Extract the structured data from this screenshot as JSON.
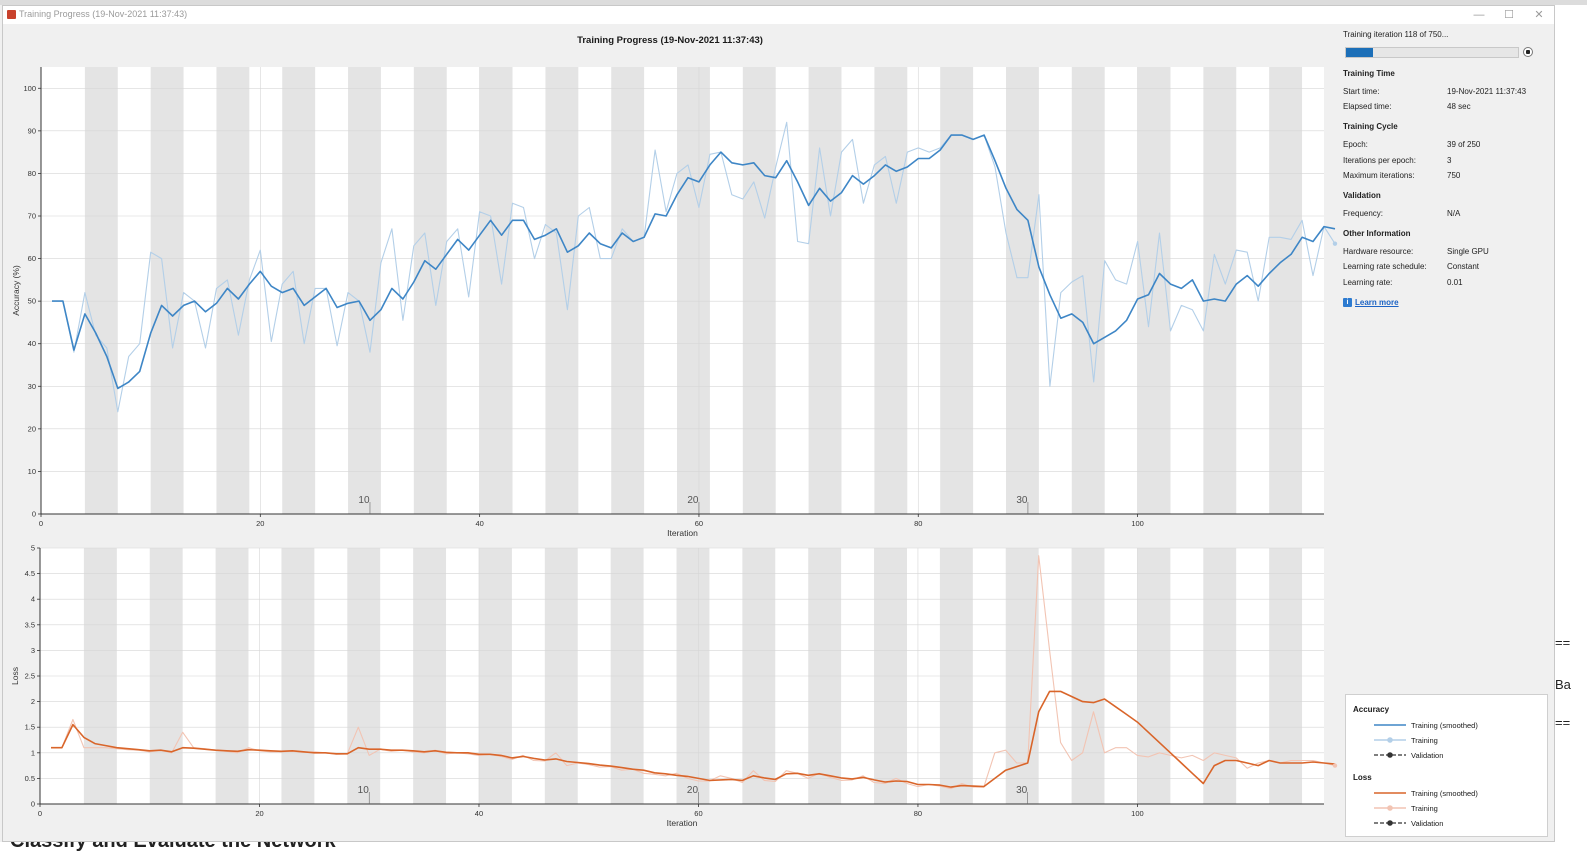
{
  "window": {
    "title": "Training Progress (19-Nov-2021 11:37:43)",
    "controls": {
      "minimize": "—",
      "maximize": "☐",
      "close": "✕"
    }
  },
  "background": {
    "heading": "Classify and Evaluate the Network",
    "right_fragments": [
      "==",
      "Ba",
      "=="
    ]
  },
  "chart_data": [
    {
      "type": "line",
      "title": "Training Progress (19-Nov-2021 11:37:43)",
      "xlabel": "Iteration",
      "ylabel": "Accuracy (%)",
      "xlim": [
        0,
        117
      ],
      "ylim": [
        0,
        105
      ],
      "x_ticks": [
        0,
        20,
        40,
        60,
        80,
        100
      ],
      "y_ticks": [
        0,
        10,
        20,
        30,
        40,
        50,
        60,
        70,
        80,
        90,
        100
      ],
      "epoch_labels": [
        10,
        20,
        30
      ],
      "iterations_per_epoch": 3,
      "grid": true,
      "series": [
        {
          "name": "Training (smoothed)",
          "color": "#3e86c6",
          "values": [
            50,
            50,
            38.5,
            47,
            42.5,
            37,
            29.5,
            31,
            33.5,
            42.5,
            49,
            46.5,
            49,
            50,
            47.5,
            49.5,
            53,
            50.5,
            54,
            57,
            53.5,
            52,
            53,
            49,
            51,
            53,
            48.5,
            49.5,
            50,
            45.5,
            48,
            53,
            50.5,
            54.5,
            59.5,
            57.5,
            61,
            64.5,
            62,
            65.5,
            69,
            65.5,
            69,
            69,
            64.5,
            65.5,
            67,
            61.5,
            63,
            66,
            63.5,
            62.5,
            66,
            64,
            65,
            70.5,
            70,
            75,
            79,
            78,
            82,
            85,
            82.5,
            82,
            82.5,
            79.5,
            79,
            83,
            78,
            72.5,
            76.5,
            73.5,
            75.5,
            79.5,
            77.5,
            79.5,
            82,
            80.5,
            81.5,
            83.5,
            83.5,
            85.5,
            89,
            89,
            88,
            89,
            83,
            76.5,
            71.5,
            69,
            58,
            51.5,
            46,
            47,
            45,
            40,
            41.5,
            43,
            45.5,
            50.5,
            51.5,
            56.5,
            54,
            53,
            55,
            50,
            50.5,
            50,
            54,
            56,
            53.5,
            56.5,
            59,
            61,
            65,
            64,
            67.5,
            67
          ]
        },
        {
          "name": "Training",
          "color": "#b3cfe8",
          "values": [
            50,
            50,
            38,
            52,
            42,
            39,
            24,
            37,
            40,
            61.5,
            60,
            39,
            52,
            50,
            39,
            53,
            55,
            42,
            55,
            62,
            40.5,
            54,
            57,
            40,
            53,
            53,
            39.5,
            52,
            50,
            38,
            59,
            67,
            45.5,
            63,
            66,
            49,
            64,
            67,
            51,
            71,
            70,
            54,
            73,
            72,
            60,
            68,
            66,
            48,
            70,
            72,
            60,
            60,
            67,
            64,
            65,
            85.5,
            71,
            80,
            82,
            72,
            84.5,
            85,
            75,
            74,
            78,
            69.5,
            81.5,
            92,
            64,
            63.5,
            86,
            70,
            85,
            88,
            73,
            82,
            84,
            73,
            85,
            86,
            85,
            86,
            89,
            89,
            88,
            89,
            81.5,
            66,
            55.5,
            55.5,
            75,
            30,
            52,
            54.5,
            56,
            31,
            59.5,
            55,
            54,
            64,
            44,
            66,
            43,
            49,
            48,
            43,
            61,
            54,
            62,
            61.5,
            50,
            65,
            65,
            64.5,
            69,
            56,
            67.5,
            63.5
          ]
        }
      ]
    },
    {
      "type": "line",
      "xlabel": "Iteration",
      "ylabel": "Loss",
      "xlim": [
        0,
        117
      ],
      "ylim": [
        0,
        5
      ],
      "x_ticks": [
        0,
        20,
        40,
        60,
        80,
        100
      ],
      "y_ticks": [
        0,
        0.5,
        1,
        1.5,
        2,
        2.5,
        3,
        3.5,
        4,
        4.5,
        5
      ],
      "epoch_labels": [
        10,
        20,
        30
      ],
      "iterations_per_epoch": 3,
      "grid": true,
      "series": [
        {
          "name": "Training (smoothed)",
          "color": "#d9652a",
          "values": [
            1.1,
            1.1,
            1.55,
            1.3,
            1.18,
            1.14,
            1.1,
            1.08,
            1.06,
            1.04,
            1.05,
            1.02,
            1.1,
            1.09,
            1.07,
            1.05,
            1.04,
            1.03,
            1.06,
            1.05,
            1.04,
            1.03,
            1.04,
            1.02,
            1,
            1,
            0.98,
            0.98,
            1.1,
            1.07,
            1.07,
            1.05,
            1.05,
            1.04,
            1.02,
            1.04,
            1.01,
            1,
            1,
            0.97,
            0.97,
            0.95,
            0.9,
            0.93,
            0.89,
            0.86,
            0.88,
            0.83,
            0.81,
            0.79,
            0.76,
            0.74,
            0.71,
            0.68,
            0.66,
            0.61,
            0.59,
            0.56,
            0.54,
            0.5,
            0.46,
            0.47,
            0.48,
            0.46,
            0.55,
            0.51,
            0.48,
            0.59,
            0.6,
            0.56,
            0.59,
            0.55,
            0.51,
            0.49,
            0.52,
            0.47,
            0.43,
            0.45,
            0.44,
            0.38,
            0.38,
            0.37,
            0.33,
            0.36,
            0.35,
            0.34,
            0.5,
            0.66,
            0.73,
            0.8,
            1.8,
            2.2,
            2.2,
            2.1,
            2,
            1.98,
            2.05,
            1.9,
            1.75,
            1.6,
            1.4,
            1.2,
            1,
            0.8,
            0.6,
            0.4,
            0.75,
            0.85,
            0.85,
            0.8,
            0.75,
            0.85,
            0.8,
            0.8,
            0.8,
            0.82,
            0.8,
            0.78
          ]
        },
        {
          "name": "Training",
          "color": "#f2c4b3",
          "values": [
            1.1,
            1.1,
            1.65,
            1.1,
            1.1,
            1.1,
            1.08,
            1.06,
            1.05,
            1.02,
            1.05,
            1,
            1.4,
            1.1,
            1.08,
            1.05,
            1.03,
            1,
            1.1,
            1.04,
            1.02,
            1.02,
            1.03,
            1.01,
            1.02,
            1,
            0.97,
            0.98,
            1.5,
            0.95,
            1.07,
            1.03,
            1.05,
            1.02,
            1,
            1.05,
            0.98,
            1,
            0.98,
            0.95,
            0.97,
            0.93,
            0.87,
            0.95,
            0.85,
            0.84,
            1,
            0.75,
            0.8,
            0.77,
            0.72,
            0.73,
            0.66,
            0.68,
            0.6,
            0.58,
            0.55,
            0.6,
            0.5,
            0.45,
            0.45,
            0.55,
            0.5,
            0.42,
            0.65,
            0.46,
            0.44,
            0.65,
            0.6,
            0.5,
            0.6,
            0.52,
            0.46,
            0.47,
            0.55,
            0.42,
            0.4,
            0.5,
            0.4,
            0.34,
            0.38,
            0.35,
            0.3,
            0.4,
            0.33,
            0.33,
            1,
            1.05,
            0.8,
            0.8,
            4.85,
            3,
            1.2,
            0.85,
            1,
            1.8,
            1,
            1.1,
            1.1,
            0.95,
            0.92,
            1,
            0.95,
            0.9,
            0.95,
            0.85,
            1,
            0.95,
            0.9,
            0.7,
            0.8,
            0.85,
            0.8,
            0.85,
            0.85,
            0.85,
            0.8,
            0.75
          ]
        }
      ]
    }
  ],
  "sidebar": {
    "status": "Training iteration 118 of 750...",
    "progress_fraction": 0.157,
    "sections": [
      {
        "title": "Training Time",
        "rows": [
          {
            "label": "Start time:",
            "value": "19-Nov-2021 11:37:43"
          },
          {
            "label": "Elapsed time:",
            "value": "48 sec"
          }
        ]
      },
      {
        "title": "Training Cycle",
        "rows": [
          {
            "label": "Epoch:",
            "value": "39 of 250"
          },
          {
            "label": "Iterations per epoch:",
            "value": "3"
          },
          {
            "label": "Maximum iterations:",
            "value": "750"
          }
        ]
      },
      {
        "title": "Validation",
        "rows": [
          {
            "label": "Frequency:",
            "value": "N/A"
          }
        ]
      },
      {
        "title": "Other Information",
        "rows": [
          {
            "label": "Hardware resource:",
            "value": "Single GPU"
          },
          {
            "label": "Learning rate schedule:",
            "value": "Constant"
          },
          {
            "label": "Learning rate:",
            "value": "0.01"
          }
        ]
      }
    ],
    "learn_more": "Learn more"
  },
  "legend": {
    "accuracy_title": "Accuracy",
    "loss_title": "Loss",
    "training_smoothed": "Training (smoothed)",
    "training": "Training",
    "validation": "Validation",
    "accuracy_color": "#3e86c6",
    "accuracy_light_color": "#b3cfe8",
    "loss_color": "#d9652a",
    "loss_light_color": "#f2c4b3"
  }
}
